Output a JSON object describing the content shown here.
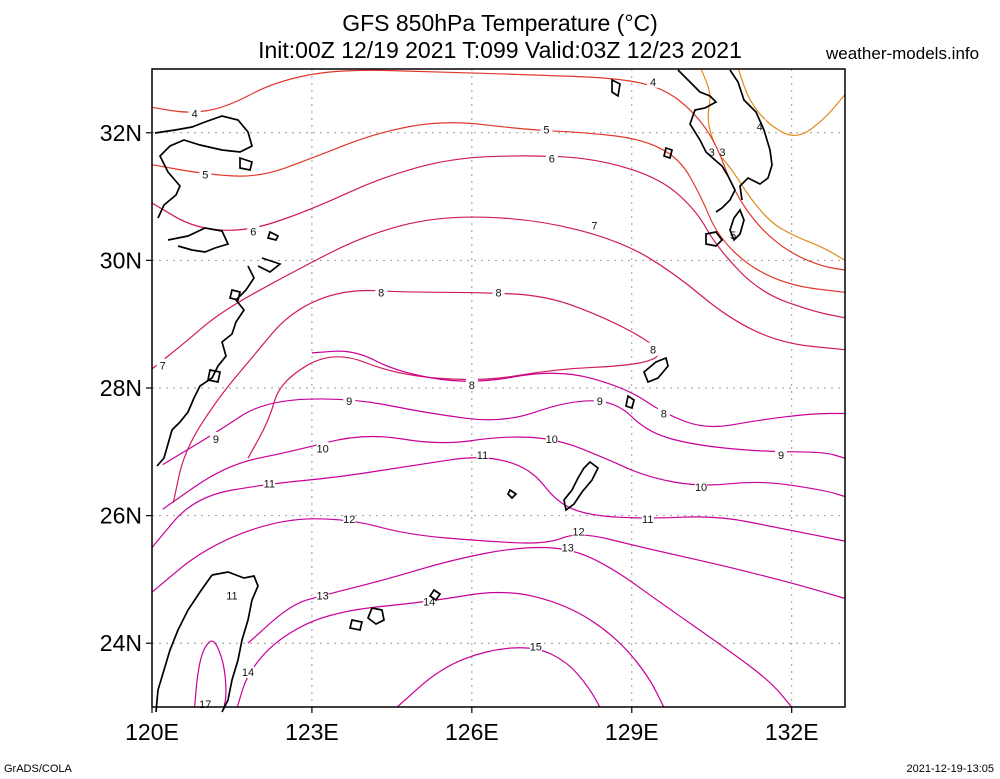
{
  "title_line1": "GFS 850hPa Temperature (°C)",
  "title_line2": "Init:00Z 12/19 2021 T:099 Valid:03Z 12/23 2021",
  "site": "weather-models.info",
  "footer_left": "GrADS/COLA",
  "footer_right": "2021-12-19-13:05",
  "map": {
    "lon_range": [
      120,
      133
    ],
    "lat_range": [
      23,
      33
    ],
    "lon_ticks": [
      {
        "value": 120,
        "label": "120E"
      },
      {
        "value": 123,
        "label": "123E"
      },
      {
        "value": 126,
        "label": "126E"
      },
      {
        "value": 129,
        "label": "129E"
      },
      {
        "value": 132,
        "label": "132E"
      }
    ],
    "lat_ticks": [
      {
        "value": 24,
        "label": "24N"
      },
      {
        "value": 26,
        "label": "26N"
      },
      {
        "value": 28,
        "label": "28N"
      },
      {
        "value": 30,
        "label": "30N"
      },
      {
        "value": 32,
        "label": "32N"
      }
    ],
    "grid": true,
    "colors": {
      "cold": "#e08a1a",
      "cool": "#e0392b",
      "mid": "#d01a5a",
      "warm": "#c8009a",
      "coast": "#000000"
    }
  },
  "contours": [
    {
      "level": "3",
      "tone": "cold",
      "label_at": [
        [
          130.5,
          31.7
        ],
        [
          130.7,
          31.7
        ]
      ],
      "line": [
        [
          130.3,
          33
        ],
        [
          130.5,
          32.6
        ],
        [
          130.4,
          32.2
        ],
        [
          130.6,
          31.7
        ],
        [
          130.9,
          31.4
        ],
        [
          131.2,
          31.0
        ],
        [
          131.6,
          30.6
        ],
        [
          132.0,
          30.4
        ],
        [
          132.6,
          30.2
        ],
        [
          133,
          30.0
        ]
      ]
    },
    {
      "level": "4",
      "tone": "cold",
      "label_at": [
        [
          131.4,
          32.1
        ]
      ],
      "line": [
        [
          131.0,
          33
        ],
        [
          131.2,
          32.5
        ],
        [
          131.6,
          32.1
        ],
        [
          132.1,
          31.9
        ],
        [
          132.6,
          32.2
        ],
        [
          133,
          32.6
        ]
      ]
    },
    {
      "level": "4",
      "tone": "cool",
      "label_at": [
        [
          120.8,
          32.3
        ],
        [
          129.4,
          32.8
        ]
      ],
      "line": [
        [
          120,
          32.4
        ],
        [
          120.7,
          32.3
        ],
        [
          121.4,
          32.4
        ],
        [
          122.3,
          32.8
        ],
        [
          123.5,
          33.0
        ],
        [
          125.5,
          32.95
        ],
        [
          127.5,
          32.9
        ],
        [
          128.8,
          32.85
        ],
        [
          129.6,
          32.7
        ],
        [
          130.2,
          32.3
        ],
        [
          130.6,
          31.8
        ],
        [
          130.9,
          31.1
        ],
        [
          131.4,
          30.5
        ],
        [
          132.0,
          30.1
        ],
        [
          132.6,
          29.9
        ],
        [
          133,
          29.85
        ]
      ]
    },
    {
      "level": "5",
      "tone": "cool",
      "label_at": [
        [
          121.0,
          31.35
        ],
        [
          127.4,
          32.05
        ],
        [
          130.9,
          30.4
        ]
      ],
      "line": [
        [
          120,
          31.5
        ],
        [
          121.0,
          31.35
        ],
        [
          122.0,
          31.3
        ],
        [
          123.0,
          31.6
        ],
        [
          124.2,
          32.0
        ],
        [
          125.5,
          32.2
        ],
        [
          127.0,
          32.05
        ],
        [
          128.2,
          32.0
        ],
        [
          129.2,
          31.9
        ],
        [
          129.9,
          31.6
        ],
        [
          130.3,
          31.0
        ],
        [
          130.6,
          30.4
        ],
        [
          131.2,
          29.9
        ],
        [
          132.0,
          29.6
        ],
        [
          133,
          29.5
        ]
      ]
    },
    {
      "level": "6",
      "tone": "mid",
      "label_at": [
        [
          121.9,
          30.45
        ],
        [
          127.5,
          31.6
        ]
      ],
      "line": [
        [
          120,
          30.9
        ],
        [
          120.8,
          30.5
        ],
        [
          121.8,
          30.45
        ],
        [
          123.0,
          30.8
        ],
        [
          124.3,
          31.3
        ],
        [
          125.6,
          31.6
        ],
        [
          127.0,
          31.65
        ],
        [
          128.3,
          31.6
        ],
        [
          129.5,
          31.3
        ],
        [
          130.2,
          30.8
        ],
        [
          130.6,
          30.2
        ],
        [
          131.4,
          29.5
        ],
        [
          132.4,
          29.2
        ],
        [
          133,
          29.1
        ]
      ]
    },
    {
      "level": "7",
      "tone": "mid",
      "label_at": [
        [
          120.2,
          28.35
        ],
        [
          128.3,
          30.55
        ]
      ],
      "line": [
        [
          120,
          28.3
        ],
        [
          120.6,
          28.7
        ],
        [
          121.3,
          29.2
        ],
        [
          122.6,
          29.8
        ],
        [
          124.0,
          30.4
        ],
        [
          125.4,
          30.7
        ],
        [
          127.2,
          30.65
        ],
        [
          128.8,
          30.3
        ],
        [
          129.8,
          29.8
        ],
        [
          130.8,
          29.1
        ],
        [
          131.8,
          28.7
        ],
        [
          133,
          28.6
        ]
      ]
    },
    {
      "level": "8",
      "tone": "mid",
      "label_at": [
        [
          124.3,
          29.5
        ],
        [
          126.5,
          29.5
        ],
        [
          129.4,
          28.6
        ]
      ],
      "line": [
        [
          120.4,
          26.2
        ],
        [
          120.6,
          27.0
        ],
        [
          121.2,
          27.8
        ],
        [
          121.9,
          28.5
        ],
        [
          122.6,
          29.2
        ],
        [
          123.6,
          29.55
        ],
        [
          124.8,
          29.5
        ],
        [
          126.1,
          29.5
        ],
        [
          127.4,
          29.45
        ],
        [
          128.5,
          29.1
        ],
        [
          129.3,
          28.75
        ],
        [
          129.6,
          28.5
        ],
        [
          129.0,
          28.35
        ],
        [
          127.6,
          28.3
        ],
        [
          126.2,
          28.1
        ],
        [
          124.6,
          28.2
        ],
        [
          123.4,
          28.6
        ],
        [
          122.4,
          28.1
        ],
        [
          122.2,
          27.5
        ],
        [
          121.8,
          26.9
        ]
      ]
    },
    {
      "level": "8",
      "tone": "warm",
      "label_at": [
        [
          126.0,
          28.05
        ],
        [
          129.6,
          27.6
        ]
      ],
      "line": [
        [
          123.0,
          28.55
        ],
        [
          123.8,
          28.6
        ],
        [
          124.6,
          28.25
        ],
        [
          126.0,
          28.05
        ],
        [
          127.6,
          28.3
        ],
        [
          128.9,
          28.0
        ],
        [
          129.6,
          27.6
        ],
        [
          130.4,
          27.35
        ],
        [
          131.4,
          27.5
        ],
        [
          132.4,
          27.6
        ],
        [
          133,
          27.6
        ]
      ]
    },
    {
      "level": "9",
      "tone": "warm",
      "label_at": [
        [
          121.2,
          27.2
        ],
        [
          123.7,
          27.8
        ],
        [
          128.4,
          27.8
        ],
        [
          131.8,
          26.95
        ]
      ],
      "line": [
        [
          120.2,
          26.8
        ],
        [
          121.2,
          27.3
        ],
        [
          122.1,
          27.8
        ],
        [
          123.7,
          27.85
        ],
        [
          125.2,
          27.6
        ],
        [
          126.6,
          27.45
        ],
        [
          127.8,
          27.8
        ],
        [
          128.7,
          27.8
        ],
        [
          129.3,
          27.3
        ],
        [
          130.2,
          27.1
        ],
        [
          131.5,
          27.0
        ],
        [
          132.6,
          27.0
        ],
        [
          133,
          26.9
        ]
      ]
    },
    {
      "level": "10",
      "tone": "warm",
      "label_at": [
        [
          123.2,
          27.05
        ],
        [
          127.5,
          27.2
        ],
        [
          130.3,
          26.45
        ]
      ],
      "line": [
        [
          120.2,
          26.1
        ],
        [
          121.4,
          26.8
        ],
        [
          122.6,
          27.0
        ],
        [
          124.0,
          27.3
        ],
        [
          125.4,
          27.1
        ],
        [
          126.6,
          27.25
        ],
        [
          127.6,
          27.2
        ],
        [
          128.5,
          26.9
        ],
        [
          129.3,
          26.6
        ],
        [
          130.3,
          26.45
        ],
        [
          131.4,
          26.55
        ],
        [
          132.6,
          26.4
        ],
        [
          133,
          26.3
        ]
      ]
    },
    {
      "level": "11",
      "tone": "warm",
      "label_at": [
        [
          122.2,
          26.5
        ],
        [
          126.2,
          26.95
        ],
        [
          129.3,
          25.95
        ],
        [
          121.5,
          24.75
        ]
      ],
      "line": [
        [
          120.0,
          25.5
        ],
        [
          120.8,
          26.3
        ],
        [
          122.2,
          26.5
        ],
        [
          123.5,
          26.6
        ],
        [
          125.0,
          26.8
        ],
        [
          126.2,
          26.95
        ],
        [
          127.1,
          26.75
        ],
        [
          127.6,
          26.2
        ],
        [
          128.2,
          26.0
        ],
        [
          129.3,
          25.95
        ],
        [
          130.6,
          26.0
        ],
        [
          131.8,
          25.8
        ],
        [
          133,
          25.6
        ]
      ]
    },
    {
      "level": "12",
      "tone": "warm",
      "label_at": [
        [
          123.7,
          25.95
        ],
        [
          128.0,
          25.75
        ]
      ],
      "line": [
        [
          120.0,
          24.8
        ],
        [
          121.0,
          25.5
        ],
        [
          122.4,
          25.95
        ],
        [
          123.7,
          25.95
        ],
        [
          124.8,
          25.7
        ],
        [
          126.2,
          25.6
        ],
        [
          127.4,
          25.55
        ],
        [
          128.0,
          25.75
        ],
        [
          129.2,
          25.5
        ],
        [
          130.8,
          25.2
        ],
        [
          132.2,
          24.9
        ],
        [
          133,
          24.7
        ]
      ]
    },
    {
      "level": "13",
      "tone": "warm",
      "label_at": [
        [
          123.2,
          24.75
        ],
        [
          127.8,
          25.5
        ]
      ],
      "line": [
        [
          121.8,
          24.0
        ],
        [
          122.6,
          24.6
        ],
        [
          123.2,
          24.75
        ],
        [
          124.4,
          25.0
        ],
        [
          125.6,
          25.3
        ],
        [
          126.8,
          25.5
        ],
        [
          127.8,
          25.5
        ],
        [
          128.6,
          25.2
        ],
        [
          129.6,
          24.6
        ],
        [
          130.8,
          23.9
        ],
        [
          131.6,
          23.4
        ],
        [
          132.0,
          23.0
        ]
      ]
    },
    {
      "level": "14",
      "tone": "warm",
      "label_at": [
        [
          121.8,
          23.55
        ],
        [
          125.2,
          24.65
        ]
      ],
      "line": [
        [
          121.6,
          23.0
        ],
        [
          121.8,
          23.55
        ],
        [
          122.4,
          24.1
        ],
        [
          123.4,
          24.5
        ],
        [
          125.2,
          24.65
        ],
        [
          126.6,
          24.85
        ],
        [
          127.8,
          24.6
        ],
        [
          128.7,
          24.1
        ],
        [
          129.3,
          23.5
        ],
        [
          129.6,
          23.0
        ]
      ]
    },
    {
      "level": "15",
      "tone": "warm",
      "label_at": [
        [
          127.2,
          23.95
        ]
      ],
      "line": [
        [
          124.6,
          23.0
        ],
        [
          125.4,
          23.6
        ],
        [
          126.3,
          23.9
        ],
        [
          127.2,
          23.95
        ],
        [
          127.8,
          23.7
        ],
        [
          128.2,
          23.3
        ],
        [
          128.4,
          23.0
        ]
      ]
    },
    {
      "level": "17",
      "tone": "warm",
      "label_at": [
        [
          121.0,
          23.05
        ]
      ],
      "line": [
        [
          120.8,
          23.0
        ],
        [
          120.85,
          23.5
        ],
        [
          120.95,
          23.9
        ],
        [
          121.15,
          24.1
        ],
        [
          121.35,
          23.7
        ],
        [
          121.4,
          23.2
        ],
        [
          121.35,
          23.0
        ]
      ]
    }
  ]
}
